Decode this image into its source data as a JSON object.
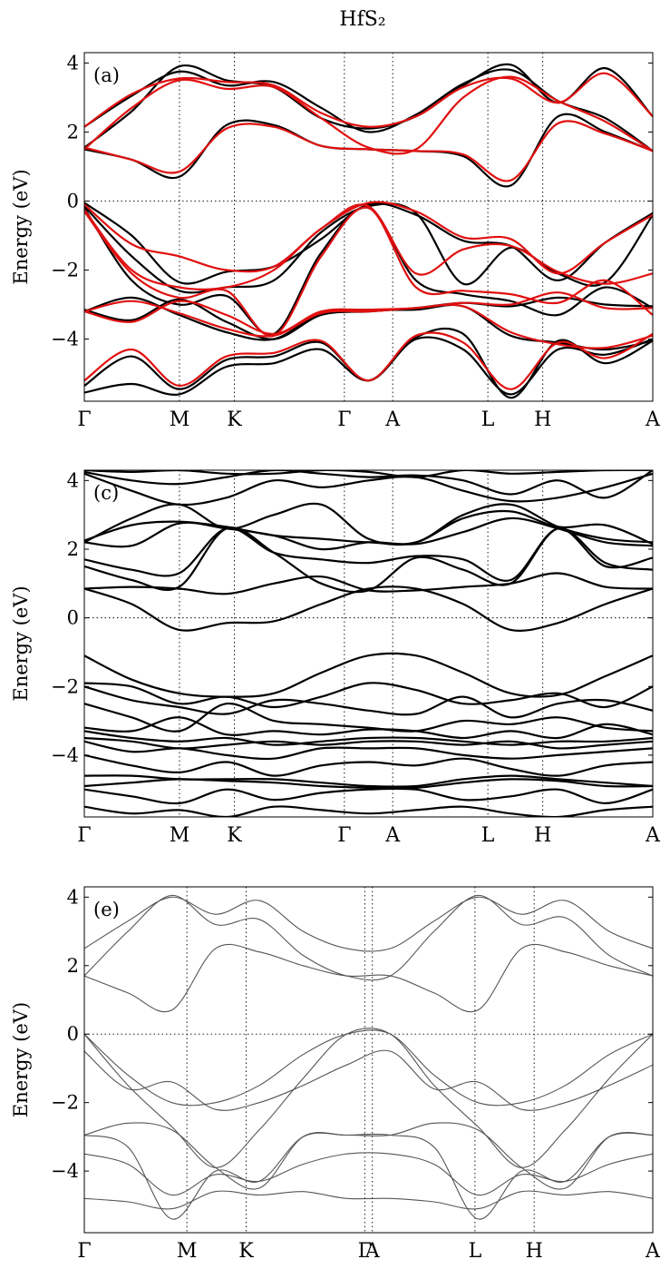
{
  "title": "HfS₂",
  "chart_data": [
    {
      "type": "line",
      "panel_label": "(a)",
      "ylabel": "Energy (eV)",
      "ylim": [
        -5.8,
        4.3
      ],
      "yticks": [
        4,
        2,
        0,
        -2,
        -4
      ],
      "kpoints": [
        {
          "label": "Γ",
          "x": 0.0
        },
        {
          "label": "M",
          "x": 0.577
        },
        {
          "label": "K",
          "x": 0.91
        },
        {
          "label": "Γ",
          "x": 1.577
        },
        {
          "label": "A",
          "x": 1.87
        },
        {
          "label": "L",
          "x": 2.447
        },
        {
          "label": "H",
          "x": 2.78
        },
        {
          "label": "A",
          "x": 3.447
        }
      ],
      "grid": "dotted at k-points and E=0",
      "series_colors": {
        "reference": "#000000",
        "model": "#e01010"
      },
      "series": [
        {
          "color": "black",
          "y": [
            1.55,
            2.6,
            3.9,
            3.5,
            3.3,
            2.4,
            2.1,
            2.45,
            3.35,
            3.95,
            2.85,
            3.85,
            2.45
          ]
        },
        {
          "color": "black",
          "y": [
            2.15,
            3.05,
            3.75,
            3.35,
            3.45,
            2.7,
            2.0,
            2.5,
            3.4,
            3.8,
            2.9,
            2.4,
            1.45
          ]
        },
        {
          "color": "black",
          "y": [
            1.5,
            1.2,
            0.7,
            2.2,
            2.2,
            1.6,
            1.5,
            1.45,
            1.3,
            0.45,
            2.45,
            2.0,
            1.45
          ]
        },
        {
          "color": "black",
          "y": [
            -0.05,
            -1.0,
            -2.35,
            -2.05,
            -1.9,
            -1.1,
            -0.1,
            -0.4,
            -1.15,
            -1.3,
            -2.3,
            -1.2,
            -0.35
          ]
        },
        {
          "color": "black",
          "y": [
            -0.15,
            -1.6,
            -2.6,
            -2.5,
            -2.3,
            -0.9,
            -0.15,
            -0.35,
            -2.4,
            -1.35,
            -2.1,
            -2.35,
            -0.4
          ]
        },
        {
          "color": "black",
          "y": [
            -0.2,
            -2.3,
            -3.0,
            -2.75,
            -3.85,
            -1.5,
            -0.2,
            -2.3,
            -2.7,
            -2.9,
            -3.3,
            -2.5,
            -3.1
          ]
        },
        {
          "color": "black",
          "y": [
            -3.15,
            -3.45,
            -2.85,
            -3.5,
            -4.0,
            -3.3,
            -3.2,
            -3.1,
            -2.95,
            -3.05,
            -2.8,
            -3.0,
            -3.05
          ]
        },
        {
          "color": "black",
          "y": [
            -3.2,
            -2.8,
            -3.3,
            -3.8,
            -4.0,
            -3.25,
            -3.15,
            -3.15,
            -3.05,
            -3.9,
            -4.1,
            -4.3,
            -4.05
          ]
        },
        {
          "color": "black",
          "y": [
            -5.35,
            -4.5,
            -5.45,
            -4.6,
            -4.5,
            -4.1,
            -5.2,
            -4.0,
            -4.3,
            -5.6,
            -4.3,
            -4.45,
            -4.0
          ]
        },
        {
          "color": "black",
          "y": [
            -5.55,
            -5.3,
            -5.6,
            -4.8,
            -4.7,
            -4.3,
            -5.2,
            -3.95,
            -3.85,
            -5.7,
            -4.05,
            -4.7,
            -4.05
          ]
        },
        {
          "color": "red",
          "y": [
            2.15,
            3.1,
            3.55,
            3.45,
            3.35,
            2.55,
            2.15,
            2.45,
            3.3,
            3.55,
            2.85,
            3.7,
            2.45
          ]
        },
        {
          "color": "red",
          "y": [
            1.5,
            2.7,
            3.5,
            3.25,
            3.3,
            2.4,
            1.55,
            1.5,
            3.0,
            3.6,
            2.9,
            2.3,
            1.45
          ]
        },
        {
          "color": "red",
          "y": [
            1.55,
            1.2,
            0.85,
            2.1,
            2.15,
            1.6,
            1.5,
            1.45,
            1.35,
            0.6,
            2.25,
            1.95,
            1.45
          ]
        },
        {
          "color": "red",
          "y": [
            -0.1,
            -1.25,
            -1.6,
            -2.0,
            -1.9,
            -0.8,
            -0.05,
            -0.3,
            -1.05,
            -1.1,
            -2.1,
            -1.2,
            -0.4
          ]
        },
        {
          "color": "red",
          "y": [
            -0.25,
            -2.0,
            -2.5,
            -2.5,
            -2.0,
            -0.8,
            -0.15,
            -2.1,
            -1.4,
            -1.3,
            -2.05,
            -2.4,
            -2.1
          ]
        },
        {
          "color": "red",
          "y": [
            -0.3,
            -2.1,
            -2.8,
            -2.6,
            -3.9,
            -1.6,
            -0.2,
            -2.5,
            -2.6,
            -2.7,
            -2.95,
            -2.3,
            -3.3
          ]
        },
        {
          "color": "red",
          "y": [
            -3.2,
            -3.5,
            -2.9,
            -3.3,
            -3.85,
            -3.2,
            -3.15,
            -3.1,
            -2.95,
            -3.0,
            -2.65,
            -3.1,
            -3.1
          ]
        },
        {
          "color": "red",
          "y": [
            -3.2,
            -2.9,
            -3.25,
            -3.7,
            -3.9,
            -3.25,
            -3.2,
            -3.1,
            -3.05,
            -3.8,
            -4.15,
            -4.25,
            -3.9
          ]
        },
        {
          "color": "red",
          "y": [
            -5.2,
            -4.3,
            -5.35,
            -4.5,
            -4.4,
            -4.05,
            -5.2,
            -3.9,
            -4.1,
            -5.45,
            -4.1,
            -4.55,
            -3.85
          ]
        }
      ]
    },
    {
      "type": "line",
      "panel_label": "(c)",
      "ylabel": "Energy (eV)",
      "ylim": [
        -5.8,
        4.3
      ],
      "yticks": [
        4,
        2,
        0,
        -2,
        -4
      ],
      "kpoints": [
        {
          "label": "Γ",
          "x": 0.0
        },
        {
          "label": "M",
          "x": 0.577
        },
        {
          "label": "K",
          "x": 0.91
        },
        {
          "label": "Γ",
          "x": 1.577
        },
        {
          "label": "A",
          "x": 1.87
        },
        {
          "label": "L",
          "x": 2.447
        },
        {
          "label": "H",
          "x": 2.78
        },
        {
          "label": "A",
          "x": 3.447
        }
      ],
      "grid": "dotted at k-points and E=0",
      "series": [
        {
          "y": [
            4.3,
            4.25,
            4.3,
            4.2,
            4.2,
            4.3,
            4.25,
            4.1,
            4.3,
            4.2,
            4.25,
            4.3,
            4.3
          ]
        },
        {
          "y": [
            4.25,
            4.0,
            3.9,
            4.1,
            4.3,
            4.2,
            4.1,
            4.15,
            4.0,
            3.6,
            4.0,
            3.5,
            4.3
          ]
        },
        {
          "y": [
            4.2,
            3.7,
            3.3,
            3.5,
            4.0,
            3.8,
            4.0,
            4.1,
            3.7,
            3.4,
            3.5,
            3.8,
            4.2
          ]
        },
        {
          "y": [
            2.2,
            2.9,
            3.3,
            2.6,
            3.0,
            3.3,
            2.3,
            2.2,
            3.0,
            3.3,
            2.65,
            2.3,
            2.2
          ]
        },
        {
          "y": [
            2.25,
            2.7,
            2.8,
            2.65,
            2.4,
            2.3,
            2.2,
            2.2,
            2.9,
            3.1,
            2.65,
            2.7,
            2.15
          ]
        },
        {
          "y": [
            2.2,
            2.1,
            2.75,
            2.6,
            2.4,
            2.0,
            2.2,
            2.15,
            2.5,
            2.9,
            2.6,
            2.2,
            2.1
          ]
        },
        {
          "y": [
            1.7,
            1.4,
            1.3,
            2.6,
            1.9,
            1.7,
            1.6,
            1.8,
            1.7,
            1.1,
            2.6,
            1.5,
            1.75
          ]
        },
        {
          "y": [
            1.5,
            1.1,
            0.9,
            2.6,
            1.9,
            1.0,
            0.8,
            1.75,
            1.4,
            1.0,
            2.6,
            1.6,
            1.4
          ]
        },
        {
          "y": [
            0.85,
            0.9,
            0.85,
            0.7,
            1.0,
            1.2,
            0.8,
            0.8,
            0.9,
            1.0,
            1.3,
            0.9,
            0.85
          ]
        },
        {
          "y": [
            0.85,
            0.4,
            -0.35,
            -0.15,
            -0.1,
            0.4,
            0.85,
            0.85,
            0.4,
            -0.35,
            -0.15,
            0.4,
            0.85
          ]
        },
        {
          "y": [
            -1.1,
            -1.8,
            -2.2,
            -2.3,
            -2.2,
            -1.6,
            -1.1,
            -1.1,
            -1.6,
            -2.2,
            -2.25,
            -1.7,
            -1.1
          ]
        },
        {
          "y": [
            -1.9,
            -2.0,
            -2.5,
            -2.3,
            -2.6,
            -2.3,
            -1.9,
            -2.1,
            -2.5,
            -2.4,
            -2.2,
            -2.6,
            -2.0
          ]
        },
        {
          "y": [
            -2.0,
            -2.4,
            -2.6,
            -2.8,
            -2.4,
            -2.5,
            -2.7,
            -2.8,
            -2.3,
            -2.9,
            -2.5,
            -2.4,
            -2.7
          ]
        },
        {
          "y": [
            -2.5,
            -2.9,
            -3.3,
            -2.5,
            -3.0,
            -3.1,
            -3.2,
            -3.3,
            -3.0,
            -3.1,
            -2.9,
            -3.2,
            -3.3
          ]
        },
        {
          "y": [
            -3.2,
            -3.3,
            -2.9,
            -3.4,
            -3.3,
            -3.4,
            -3.25,
            -3.3,
            -3.5,
            -3.3,
            -3.5,
            -3.1,
            -3.4
          ]
        },
        {
          "y": [
            -3.3,
            -3.5,
            -3.6,
            -3.5,
            -3.7,
            -3.6,
            -3.5,
            -3.5,
            -3.6,
            -3.7,
            -3.6,
            -3.6,
            -3.5
          ]
        },
        {
          "y": [
            -3.5,
            -3.6,
            -3.8,
            -3.7,
            -3.6,
            -3.7,
            -3.6,
            -3.6,
            -3.7,
            -3.6,
            -3.8,
            -3.7,
            -3.6
          ]
        },
        {
          "y": [
            -3.6,
            -3.9,
            -3.8,
            -4.0,
            -4.1,
            -3.8,
            -3.8,
            -3.8,
            -4.0,
            -4.1,
            -4.0,
            -3.9,
            -3.8
          ]
        },
        {
          "y": [
            -4.0,
            -4.3,
            -4.5,
            -4.2,
            -4.6,
            -4.3,
            -4.2,
            -4.3,
            -4.1,
            -4.4,
            -4.6,
            -4.3,
            -4.2
          ]
        },
        {
          "y": [
            -4.6,
            -4.6,
            -4.7,
            -4.7,
            -4.7,
            -4.8,
            -4.9,
            -4.9,
            -4.7,
            -4.6,
            -4.7,
            -4.8,
            -4.9
          ]
        },
        {
          "y": [
            -4.9,
            -4.8,
            -4.7,
            -4.75,
            -4.8,
            -4.9,
            -4.95,
            -4.95,
            -4.8,
            -4.7,
            -4.75,
            -4.9,
            -4.9
          ]
        },
        {
          "y": [
            -5.0,
            -5.2,
            -5.4,
            -5.0,
            -5.3,
            -5.1,
            -5.0,
            -5.0,
            -5.3,
            -5.2,
            -5.0,
            -5.4,
            -5.0
          ]
        },
        {
          "y": [
            -5.5,
            -5.7,
            -5.6,
            -5.8,
            -5.5,
            -5.6,
            -5.7,
            -5.6,
            -5.5,
            -5.7,
            -5.8,
            -5.6,
            -5.5
          ]
        }
      ]
    },
    {
      "type": "line",
      "panel_label": "(e)",
      "ylabel": "Energy (eV)",
      "ylim": [
        -5.8,
        4.3
      ],
      "yticks": [
        4,
        2,
        0,
        -2,
        -4
      ],
      "kpoints": [
        {
          "label": "Γ",
          "x": 0.0
        },
        {
          "label": "M",
          "x": 0.577
        },
        {
          "label": "K",
          "x": 0.91
        },
        {
          "label": "Γ",
          "x": 1.577
        },
        {
          "label": "A",
          "x": 1.62
        },
        {
          "label": "L",
          "x": 2.197
        },
        {
          "label": "H",
          "x": 2.53
        },
        {
          "label": "A",
          "x": 3.197
        }
      ],
      "grid": "dotted at k-points and E=0",
      "series": [
        {
          "y": [
            1.7,
            3.0,
            4.05,
            3.2,
            3.35,
            2.3,
            1.7,
            1.7,
            3.0,
            4.05,
            3.2,
            3.4,
            2.3,
            1.7
          ]
        },
        {
          "y": [
            1.7,
            1.2,
            0.7,
            2.5,
            2.4,
            2.0,
            1.7,
            1.7,
            1.2,
            0.7,
            2.5,
            2.4,
            2.0,
            1.7
          ]
        },
        {
          "y": [
            2.5,
            3.3,
            4.0,
            3.5,
            3.9,
            3.0,
            2.5,
            2.5,
            3.3,
            4.0,
            3.5,
            3.9,
            3.0,
            2.5
          ]
        },
        {
          "y": [
            0.0,
            -1.2,
            -2.0,
            -2.0,
            -1.5,
            -0.6,
            0.0,
            0.0,
            -1.2,
            -2.0,
            -2.0,
            -1.5,
            -0.6,
            0.0
          ]
        },
        {
          "y": [
            0.0,
            -1.5,
            -2.7,
            -3.9,
            -2.8,
            -1.3,
            0.0,
            0.0,
            -1.5,
            -2.7,
            -3.9,
            -2.8,
            -1.3,
            0.0
          ]
        },
        {
          "y": [
            -2.95,
            -2.6,
            -2.8,
            -3.9,
            -4.5,
            -3.0,
            -2.95,
            -2.95,
            -2.6,
            -2.8,
            -3.9,
            -4.5,
            -3.0,
            -2.95
          ]
        },
        {
          "y": [
            -2.95,
            -3.3,
            -5.4,
            -4.0,
            -4.3,
            -3.0,
            -2.95,
            -2.95,
            -3.3,
            -5.4,
            -4.0,
            -4.3,
            -3.0,
            -2.95
          ]
        },
        {
          "y": [
            -0.5,
            -1.6,
            -1.4,
            -2.2,
            -2.0,
            -1.5,
            -0.9,
            -0.5,
            -1.6,
            -1.4,
            -2.2,
            -2.0,
            -1.5,
            -0.9
          ]
        },
        {
          "y": [
            -3.5,
            -3.8,
            -4.7,
            -4.1,
            -4.3,
            -3.8,
            -3.5,
            -3.5,
            -3.8,
            -4.7,
            -4.1,
            -4.3,
            -3.8,
            -3.5
          ]
        },
        {
          "y": [
            -4.8,
            -4.9,
            -5.1,
            -4.6,
            -4.7,
            -4.6,
            -4.8,
            -4.8,
            -4.9,
            -5.1,
            -4.6,
            -4.7,
            -4.6,
            -4.8
          ]
        }
      ]
    }
  ]
}
